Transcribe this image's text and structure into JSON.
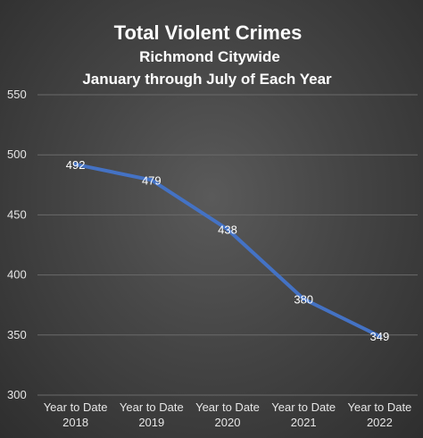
{
  "chart_data": {
    "type": "line",
    "title": "Total Violent Crimes",
    "subtitle": [
      "Richmond Citywide",
      "January through July of Each Year"
    ],
    "categories": [
      [
        "Year to Date",
        "2018"
      ],
      [
        "Year to Date",
        "2019"
      ],
      [
        "Year to Date",
        "2020"
      ],
      [
        "Year to Date",
        "2021"
      ],
      [
        "Year to Date",
        "2022"
      ]
    ],
    "series": [
      {
        "values": [
          492,
          479,
          438,
          380,
          349
        ],
        "color": "#4472c4"
      }
    ],
    "data_labels": [
      "492",
      "479",
      "438",
      "380",
      "349"
    ],
    "ylim": [
      300,
      550
    ],
    "yticks": [
      "300",
      "350",
      "400",
      "450",
      "500",
      "550"
    ],
    "grid": true,
    "legend": "none"
  }
}
